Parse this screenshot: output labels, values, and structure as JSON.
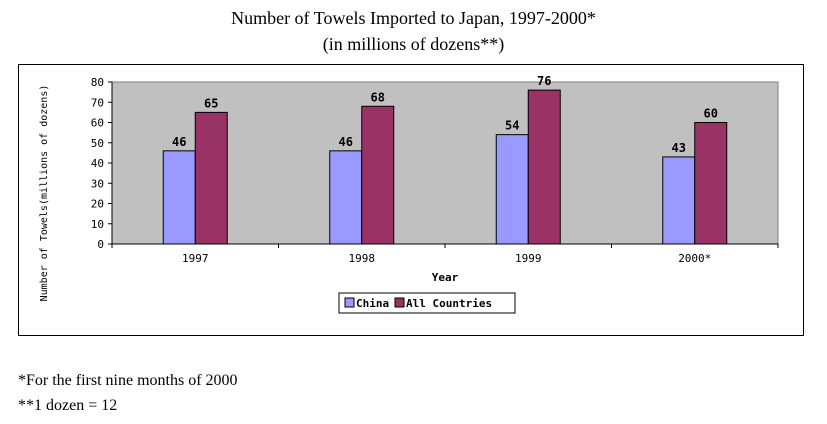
{
  "title_line1": "Number of Towels Imported to Japan, 1997-2000*",
  "title_line2": "(in millions of dozens**)",
  "footnotes": [
    "*For the first nine months of 2000",
    "**1 dozen = 12"
  ],
  "colors": {
    "China": "#9999ff",
    "All Countries": "#993366",
    "plot_bg": "#c0c0c0"
  },
  "chart_data": {
    "type": "bar",
    "categories": [
      "1997",
      "1998",
      "1999",
      "2000*"
    ],
    "series": [
      {
        "name": "China",
        "values": [
          46,
          46,
          54,
          43
        ]
      },
      {
        "name": "All Countries",
        "values": [
          65,
          68,
          76,
          60
        ]
      }
    ],
    "xlabel": "Year",
    "ylabel": "Number of Towels(millions of dozens)",
    "ylim": [
      0,
      80
    ],
    "yticks": [
      0,
      10,
      20,
      30,
      40,
      50,
      60,
      70,
      80
    ],
    "grid": false,
    "legend": "bottom"
  }
}
